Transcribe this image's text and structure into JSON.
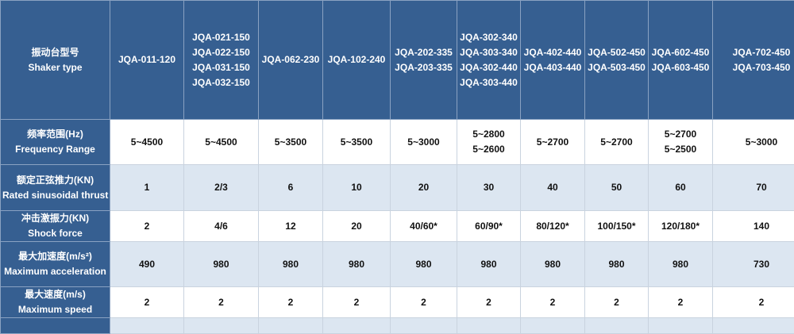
{
  "header": {
    "label": [
      "振动台型号",
      "Shaker type"
    ],
    "models": [
      [
        "JQA-011-120"
      ],
      [
        "JQA-021-150",
        "JQA-022-150",
        "JQA-031-150",
        "JQA-032-150"
      ],
      [
        "JQA-062-230"
      ],
      [
        "JQA-102-240"
      ],
      [
        "JQA-202-335",
        "JQA-203-335"
      ],
      [
        "JQA-302-340",
        "JQA-303-340",
        "JQA-302-440",
        "JQA-303-440"
      ],
      [
        "JQA-402-440",
        "JQA-403-440"
      ],
      [
        "JQA-502-450",
        "JQA-503-450"
      ],
      [
        "JQA-602-450",
        "JQA-603-450"
      ],
      [
        "JQA-702-450",
        "JQA-703-450"
      ]
    ]
  },
  "rows": [
    {
      "label": [
        "频率范围(Hz)",
        "Frequency Range"
      ],
      "values": [
        [
          "5~4500"
        ],
        [
          "5~4500"
        ],
        [
          "5~3500"
        ],
        [
          "5~3500"
        ],
        [
          "5~3000"
        ],
        [
          "5~2800",
          "5~2600"
        ],
        [
          "5~2700"
        ],
        [
          "5~2700"
        ],
        [
          "5~2700",
          "5~2500"
        ],
        [
          "5~3000"
        ]
      ]
    },
    {
      "label": [
        "额定正弦推力(KN)",
        "Rated sinusoidal thrust"
      ],
      "values": [
        [
          "1"
        ],
        [
          "2/3"
        ],
        [
          "6"
        ],
        [
          "10"
        ],
        [
          "20"
        ],
        [
          "30"
        ],
        [
          "40"
        ],
        [
          "50"
        ],
        [
          "60"
        ],
        [
          "70"
        ]
      ]
    },
    {
      "label": [
        "冲击激振力(KN)",
        "Shock force"
      ],
      "values": [
        [
          "2"
        ],
        [
          "4/6"
        ],
        [
          "12"
        ],
        [
          "20"
        ],
        [
          "40/60*"
        ],
        [
          "60/90*"
        ],
        [
          "80/120*"
        ],
        [
          "100/150*"
        ],
        [
          "120/180*"
        ],
        [
          "140"
        ]
      ]
    },
    {
      "label": [
        "最大加速度(m/s²)",
        "Maximum acceleration"
      ],
      "values": [
        [
          "490"
        ],
        [
          "980"
        ],
        [
          "980"
        ],
        [
          "980"
        ],
        [
          "980"
        ],
        [
          "980"
        ],
        [
          "980"
        ],
        [
          "980"
        ],
        [
          "980"
        ],
        [
          "730"
        ]
      ]
    },
    {
      "label": [
        "最大速度(m/s)",
        "Maximum speed"
      ],
      "values": [
        [
          "2"
        ],
        [
          "2"
        ],
        [
          "2"
        ],
        [
          "2"
        ],
        [
          "2"
        ],
        [
          "2"
        ],
        [
          "2"
        ],
        [
          "2"
        ],
        [
          "2"
        ],
        [
          "2"
        ]
      ]
    }
  ],
  "colors": {
    "header_bg": "#365f91",
    "alt_row_bg": "#dce6f1",
    "row_bg": "#ffffff"
  }
}
